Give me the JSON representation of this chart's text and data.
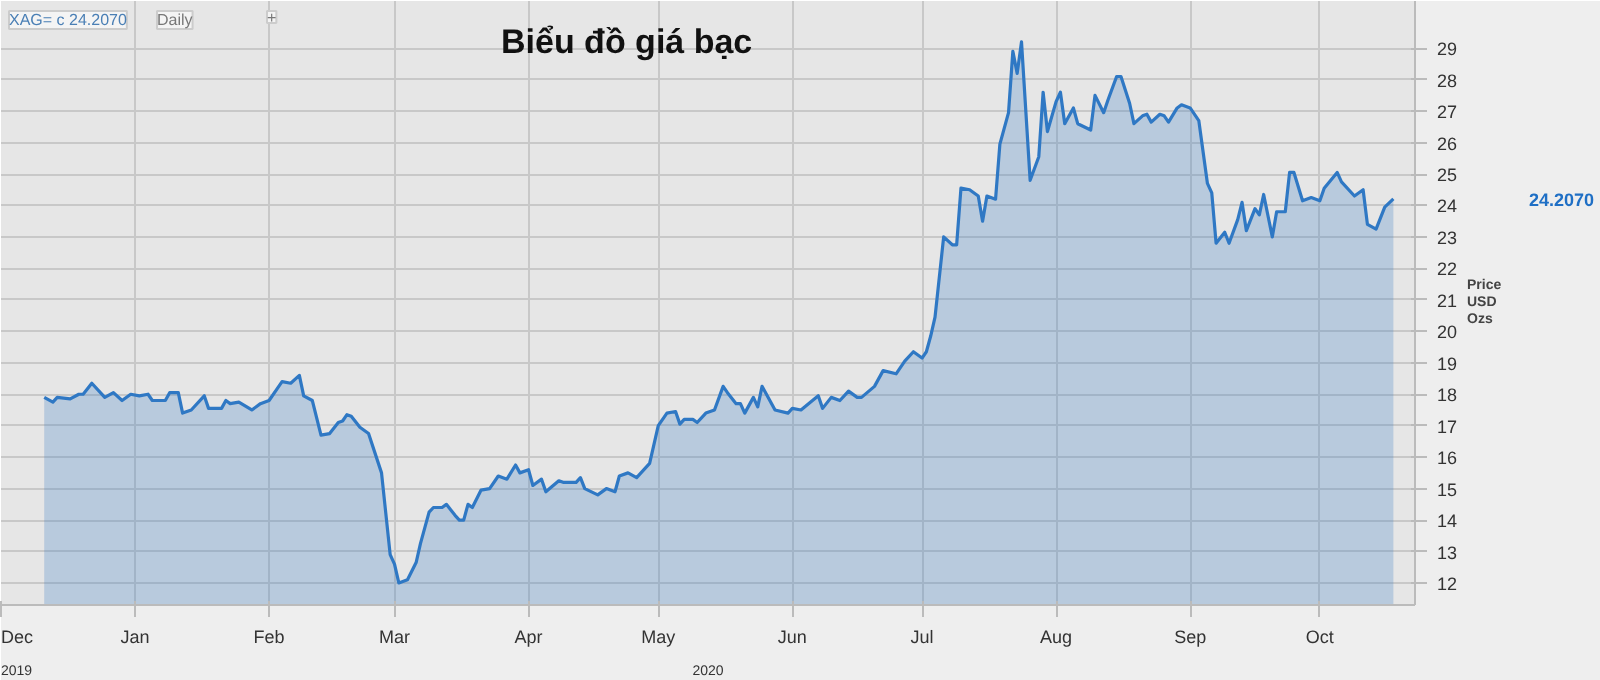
{
  "chart_data": {
    "type": "area",
    "title": "Biểu đồ giá bạc",
    "ylabel": "Price USD Ozs",
    "x": [
      "2019-12-11",
      "2019-12-13",
      "2019-12-14",
      "2019-12-17",
      "2019-12-19",
      "2019-12-20",
      "2019-12-22",
      "2019-12-25",
      "2019-12-27",
      "2019-12-29",
      "2019-12-31",
      "2020-01-02",
      "2020-01-04",
      "2020-01-05",
      "2020-01-08",
      "2020-01-09",
      "2020-01-11",
      "2020-01-12",
      "2020-01-14",
      "2020-01-17",
      "2020-01-18",
      "2020-01-21",
      "2020-01-22",
      "2020-01-23",
      "2020-01-25",
      "2020-01-28",
      "2020-01-30",
      "2020-02-01",
      "2020-02-03",
      "2020-02-04",
      "2020-02-06",
      "2020-02-08",
      "2020-02-09",
      "2020-02-11",
      "2020-02-13",
      "2020-02-15",
      "2020-02-17",
      "2020-02-18",
      "2020-02-19",
      "2020-02-20",
      "2020-02-22",
      "2020-02-24",
      "2020-02-27",
      "2020-02-29",
      "2020-03-01",
      "2020-03-02",
      "2020-03-04",
      "2020-03-06",
      "2020-03-07",
      "2020-03-09",
      "2020-03-10",
      "2020-03-12",
      "2020-03-13",
      "2020-03-15",
      "2020-03-16",
      "2020-03-17",
      "2020-03-18",
      "2020-03-19",
      "2020-03-21",
      "2020-03-23",
      "2020-03-25",
      "2020-03-27",
      "2020-03-29",
      "2020-03-30",
      "2020-04-01",
      "2020-04-02",
      "2020-04-04",
      "2020-04-05",
      "2020-04-08",
      "2020-04-09",
      "2020-04-12",
      "2020-04-13",
      "2020-04-14",
      "2020-04-17",
      "2020-04-19",
      "2020-04-21",
      "2020-04-22",
      "2020-04-24",
      "2020-04-26",
      "2020-04-29",
      "2020-05-01",
      "2020-05-03",
      "2020-05-05",
      "2020-05-06",
      "2020-05-07",
      "2020-05-09",
      "2020-05-10",
      "2020-05-12",
      "2020-05-14",
      "2020-05-16",
      "2020-05-17",
      "2020-05-19",
      "2020-05-20",
      "2020-05-21",
      "2020-05-23",
      "2020-05-24",
      "2020-05-25",
      "2020-05-28",
      "2020-05-31",
      "2020-06-01",
      "2020-06-03",
      "2020-06-07",
      "2020-06-08",
      "2020-06-10",
      "2020-06-12",
      "2020-06-14",
      "2020-06-16",
      "2020-06-17",
      "2020-06-20",
      "2020-06-22",
      "2020-06-25",
      "2020-06-27",
      "2020-06-29",
      "2020-07-01",
      "2020-07-02",
      "2020-07-03",
      "2020-07-04",
      "2020-07-06",
      "2020-07-08",
      "2020-07-09",
      "2020-07-10",
      "2020-07-12",
      "2020-07-14",
      "2020-07-15",
      "2020-07-16",
      "2020-07-18",
      "2020-07-19",
      "2020-07-21",
      "2020-07-22",
      "2020-07-23",
      "2020-07-24",
      "2020-07-26",
      "2020-07-28",
      "2020-07-29",
      "2020-07-30",
      "2020-08-01",
      "2020-08-02",
      "2020-08-03",
      "2020-08-05",
      "2020-08-06",
      "2020-08-09",
      "2020-08-10",
      "2020-08-12",
      "2020-08-13",
      "2020-08-15",
      "2020-08-16",
      "2020-08-18",
      "2020-08-19",
      "2020-08-21",
      "2020-08-22",
      "2020-08-23",
      "2020-08-25",
      "2020-08-26",
      "2020-08-27",
      "2020-08-29",
      "2020-08-30",
      "2020-09-01",
      "2020-09-03",
      "2020-09-05",
      "2020-09-06",
      "2020-09-07",
      "2020-09-09",
      "2020-09-10",
      "2020-09-12",
      "2020-09-13",
      "2020-09-14",
      "2020-09-16",
      "2020-09-17",
      "2020-09-18",
      "2020-09-20",
      "2020-09-21",
      "2020-09-23",
      "2020-09-24",
      "2020-09-25",
      "2020-09-27",
      "2020-09-29",
      "2020-10-01",
      "2020-10-02",
      "2020-10-05",
      "2020-10-06",
      "2020-10-09",
      "2020-10-11",
      "2020-10-12",
      "2020-10-14",
      "2020-10-16",
      "2020-10-18"
    ],
    "series": [
      {
        "color": "#2f78c4",
        "values": [
          17.9,
          17.75,
          17.9,
          17.85,
          18.0,
          18.0,
          18.35,
          17.9,
          18.05,
          17.8,
          18.0,
          17.95,
          18.0,
          17.8,
          17.8,
          18.05,
          18.05,
          17.4,
          17.5,
          17.95,
          17.55,
          17.55,
          17.8,
          17.7,
          17.75,
          17.5,
          17.7,
          17.8,
          18.2,
          18.4,
          18.35,
          18.6,
          17.95,
          17.8,
          16.7,
          16.75,
          17.1,
          17.15,
          17.35,
          17.3,
          16.95,
          16.75,
          15.5,
          12.9,
          12.6,
          12.0,
          12.1,
          12.65,
          13.25,
          14.25,
          14.4,
          14.4,
          14.5,
          14.15,
          14.0,
          14.0,
          14.5,
          14.4,
          14.95,
          15.0,
          15.4,
          15.3,
          15.75,
          15.5,
          15.6,
          15.1,
          15.3,
          14.9,
          15.25,
          15.2,
          15.2,
          15.35,
          15.0,
          14.8,
          15.0,
          14.9,
          15.4,
          15.5,
          15.35,
          15.8,
          17.0,
          17.4,
          17.45,
          17.05,
          17.2,
          17.2,
          17.1,
          17.4,
          17.5,
          18.25,
          18.05,
          17.7,
          17.7,
          17.4,
          17.9,
          17.6,
          18.25,
          17.5,
          17.4,
          17.55,
          17.5,
          17.95,
          17.55,
          17.9,
          17.8,
          18.1,
          17.9,
          17.9,
          18.25,
          18.75,
          18.65,
          19.05,
          19.35,
          19.15,
          19.35,
          19.85,
          20.45,
          23.0,
          22.75,
          22.75,
          24.55,
          24.5,
          24.3,
          23.5,
          24.3,
          24.2,
          25.95,
          26.95,
          28.9,
          28.2,
          29.2,
          24.8,
          25.55,
          27.6,
          26.35,
          27.3,
          27.6,
          26.6,
          27.1,
          26.6,
          26.4,
          27.5,
          26.95,
          27.35,
          28.1,
          28.1,
          27.25,
          26.6,
          26.85,
          26.9,
          26.65,
          26.9,
          26.85,
          26.65,
          27.1,
          27.2,
          27.1,
          26.7,
          24.7,
          24.4,
          22.8,
          23.15,
          22.8,
          23.55,
          24.1,
          23.2,
          23.9,
          23.7,
          24.35,
          23.0,
          23.8,
          23.8,
          25.05,
          25.05,
          24.15,
          24.25,
          24.15,
          24.55,
          25.05,
          24.75,
          24.3,
          24.5,
          23.4,
          23.25,
          23.95,
          24.21
        ]
      }
    ],
    "xlim": [
      "2019-12-01",
      "2020-10-23"
    ],
    "ylim": [
      11.3,
      30.5
    ],
    "xticks": [
      {
        "value": "2019-12-01",
        "label": "Dec"
      },
      {
        "value": "2020-01-01",
        "label": "Jan"
      },
      {
        "value": "2020-02-01",
        "label": "Feb"
      },
      {
        "value": "2020-03-01",
        "label": "Mar"
      },
      {
        "value": "2020-04-01",
        "label": "Apr"
      },
      {
        "value": "2020-05-01",
        "label": "May"
      },
      {
        "value": "2020-06-01",
        "label": "Jun"
      },
      {
        "value": "2020-07-01",
        "label": "Jul"
      },
      {
        "value": "2020-08-01",
        "label": "Aug"
      },
      {
        "value": "2020-09-01",
        "label": "Sep"
      },
      {
        "value": "2020-10-01",
        "label": "Oct"
      }
    ],
    "yticks": [
      12,
      13,
      14,
      15,
      16,
      17,
      18,
      19,
      20,
      21,
      22,
      23,
      24,
      25,
      26,
      27,
      28,
      29
    ],
    "grid": true,
    "annotations": [
      "XAG= c 24.2070",
      "Daily",
      "+",
      "24.2070",
      "2019",
      "2020"
    ]
  }
}
